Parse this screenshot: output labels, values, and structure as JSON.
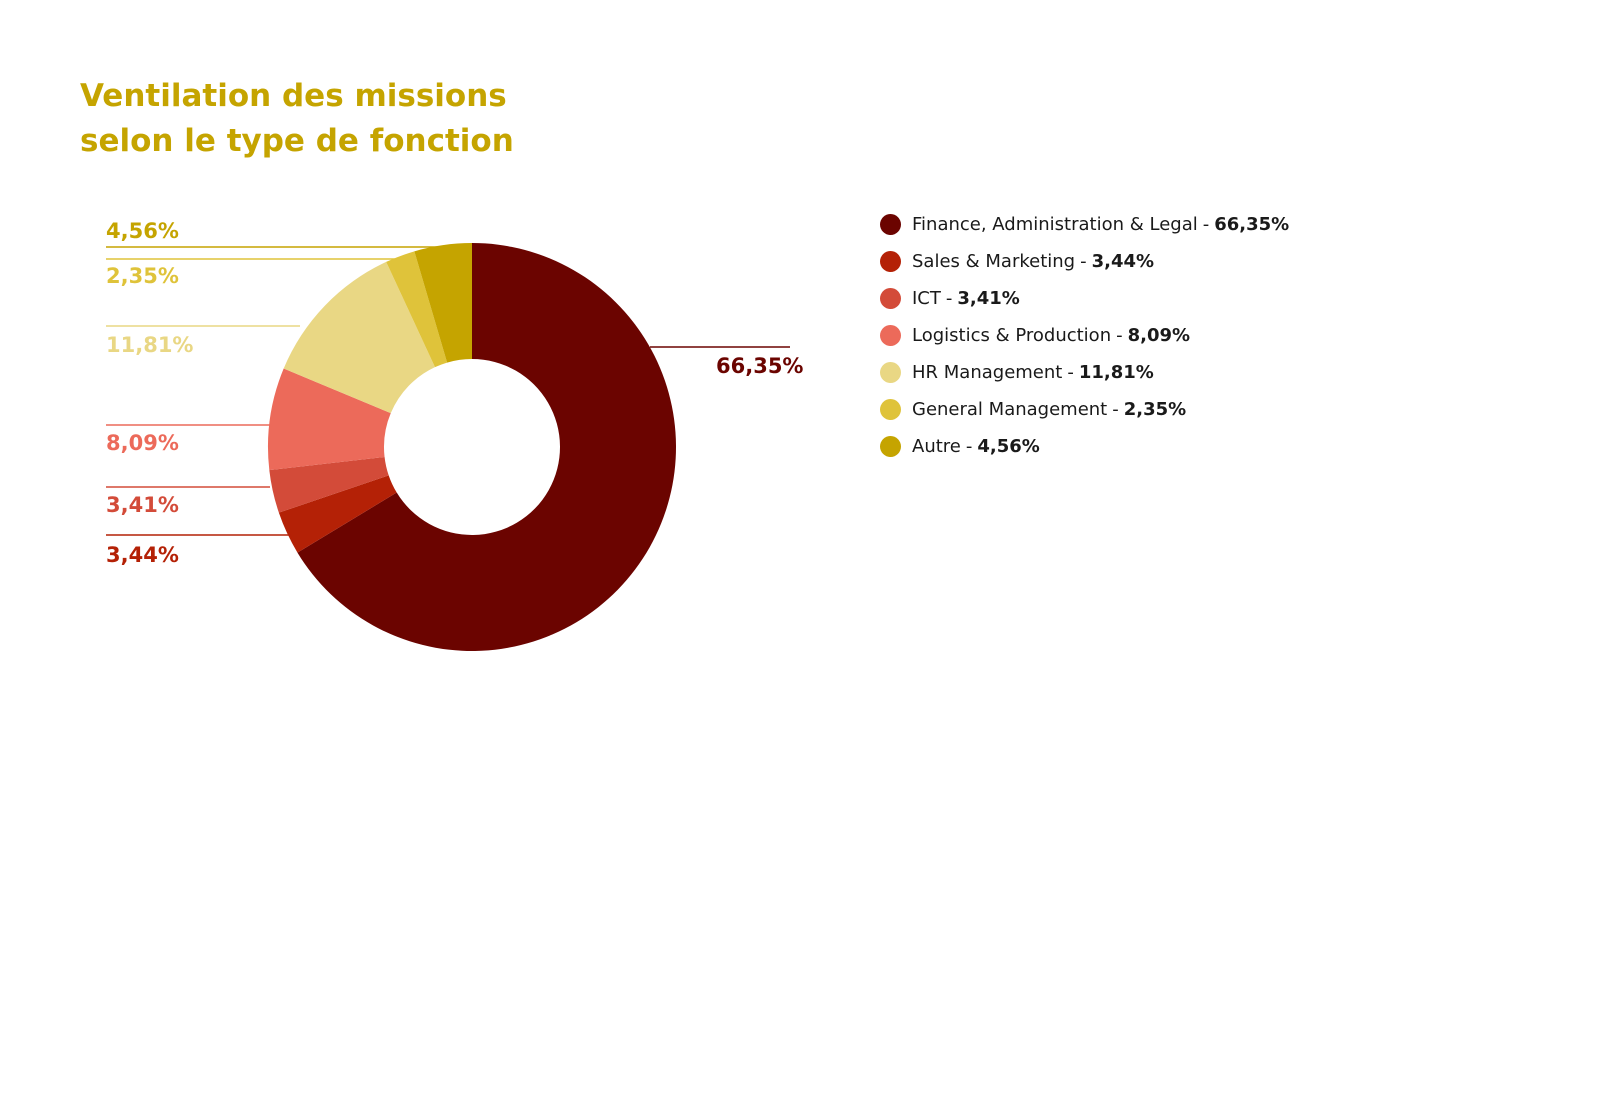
{
  "title_lines": [
    "Ventilation des missions",
    "selon le type de fonction"
  ],
  "colors": {
    "title": "#c5a400",
    "finance": "#6b0400",
    "sales": "#b42106",
    "ict": "#d34b39",
    "logistics": "#ec6a5a",
    "hr": "#e9d784",
    "general": "#dfc33a",
    "autre": "#c5a400"
  },
  "chart_data": {
    "type": "pie",
    "variant": "donut",
    "title": "Ventilation des missions selon le type de fonction",
    "unit": "%",
    "legend_position": "right",
    "slices": [
      {
        "name": "Finance, Administration & Legal",
        "value": 66.35,
        "label": "66,35%",
        "color": "#6b0400"
      },
      {
        "name": "Sales & Marketing",
        "value": 3.44,
        "label": "3,44%",
        "color": "#b42106"
      },
      {
        "name": "ICT",
        "value": 3.41,
        "label": "3,41%",
        "color": "#d34b39"
      },
      {
        "name": "Logistics & Production",
        "value": 8.09,
        "label": "8,09%",
        "color": "#ec6a5a"
      },
      {
        "name": "HR Management",
        "value": 11.81,
        "label": "11,81%",
        "color": "#e9d784"
      },
      {
        "name": "General Management",
        "value": 2.35,
        "label": "2,35%",
        "color": "#dfc33a"
      },
      {
        "name": "Autre",
        "value": 4.56,
        "label": "4,56%",
        "color": "#c5a400"
      }
    ]
  },
  "legend": {
    "items": [
      {
        "name": "Finance, Administration & Legal",
        "value": "66,35%"
      },
      {
        "name": "Sales & Marketing",
        "value": "3,44%"
      },
      {
        "name": "ICT",
        "value": "3,41%"
      },
      {
        "name": "Logistics & Production",
        "value": "8,09%"
      },
      {
        "name": "HR Management",
        "value": "11,81%"
      },
      {
        "name": "General Management",
        "value": "2,35%"
      },
      {
        "name": "Autre",
        "value": "4,56%"
      }
    ]
  }
}
